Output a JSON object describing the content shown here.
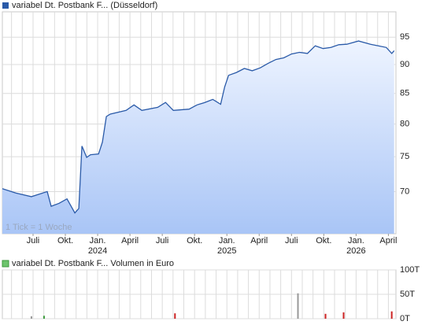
{
  "chart_data": [
    {
      "type": "area",
      "legend": "variabel Dt. Postbank F... (Düsseldorf)",
      "annotation": "1 Tick = 1 Woche",
      "log_scale": true,
      "grid": true,
      "color": "#2a5aa8",
      "ylim": [
        64.4,
        99.9
      ],
      "yticks": [
        70,
        75,
        80,
        85,
        90,
        95
      ],
      "xlim": [
        3.15,
        39.7
      ],
      "xticks": [
        {
          "value": 6,
          "label": "Juli"
        },
        {
          "value": 9,
          "label": "Okt."
        },
        {
          "value": 12,
          "label": "Jan."
        },
        {
          "value": 15,
          "label": "April"
        },
        {
          "value": 18,
          "label": "Juli"
        },
        {
          "value": 21,
          "label": "Okt."
        },
        {
          "value": 24,
          "label": "Jan."
        },
        {
          "value": 27,
          "label": "April"
        },
        {
          "value": 30,
          "label": "Juli"
        },
        {
          "value": 33,
          "label": "Okt."
        },
        {
          "value": 36,
          "label": "Jan."
        },
        {
          "value": 39,
          "label": "April"
        }
      ],
      "year_labels": [
        {
          "value": 12,
          "label": "2024"
        },
        {
          "value": 24,
          "label": "2025"
        },
        {
          "value": 36,
          "label": "2026"
        }
      ],
      "xgrid": [
        4,
        5,
        6,
        7,
        8,
        9,
        10,
        11,
        12,
        13,
        14,
        15,
        16,
        17,
        18,
        19,
        20,
        21,
        22,
        23,
        24,
        25,
        26,
        27,
        28,
        29,
        30,
        31,
        32,
        33,
        34,
        35,
        36,
        37,
        38,
        39
      ],
      "x": [
        3.15,
        4.39,
        5.85,
        7.32,
        7.68,
        8.42,
        9.15,
        9.88,
        10.25,
        10.54,
        10.98,
        11.34,
        12.08,
        12.44,
        12.81,
        13.17,
        14.64,
        15.37,
        16.1,
        17.57,
        18.3,
        19.03,
        20.49,
        21.23,
        21.96,
        22.69,
        23.42,
        23.79,
        24.16,
        24.89,
        25.62,
        26.35,
        27.08,
        27.82,
        28.55,
        29.28,
        30.01,
        30.74,
        31.48,
        32.21,
        32.94,
        33.67,
        34.4,
        35.14,
        36.23,
        37.33,
        38.06,
        38.8,
        39.31,
        39.53
      ],
      "values": [
        70.4,
        69.8,
        69.3,
        70.0,
        68.0,
        68.4,
        69.0,
        67.1,
        67.7,
        76.6,
        74.9,
        75.3,
        75.4,
        77.2,
        81.2,
        81.6,
        82.2,
        83.1,
        82.2,
        82.7,
        83.5,
        82.2,
        82.4,
        83.1,
        83.5,
        84.0,
        83.2,
        86.1,
        88.1,
        88.6,
        89.3,
        88.9,
        89.4,
        90.2,
        90.9,
        91.2,
        91.9,
        92.2,
        92.0,
        93.4,
        92.9,
        93.1,
        93.6,
        93.7,
        94.3,
        93.7,
        93.4,
        93.1,
        92.0,
        92.5
      ]
    },
    {
      "type": "bar",
      "legend": "variabel Dt. Postbank F... Volumen in Euro",
      "color": "#3c9a3c",
      "ylim": [
        0,
        100
      ],
      "yticks": [
        {
          "value": 0,
          "label": "0T"
        },
        {
          "value": 50,
          "label": "50T"
        },
        {
          "value": 100,
          "label": "100T"
        }
      ],
      "xlim": [
        3.15,
        39.7
      ],
      "x": [
        5.85,
        7.02,
        19.18,
        30.6,
        33.16,
        34.84,
        39.31
      ],
      "values": [
        5,
        6,
        11,
        52,
        10,
        13,
        15
      ],
      "colors": [
        "#999999",
        "#3c9a3c",
        "#cc2222",
        "#999999",
        "#cc2222",
        "#cc2222",
        "#cc2222"
      ]
    }
  ]
}
